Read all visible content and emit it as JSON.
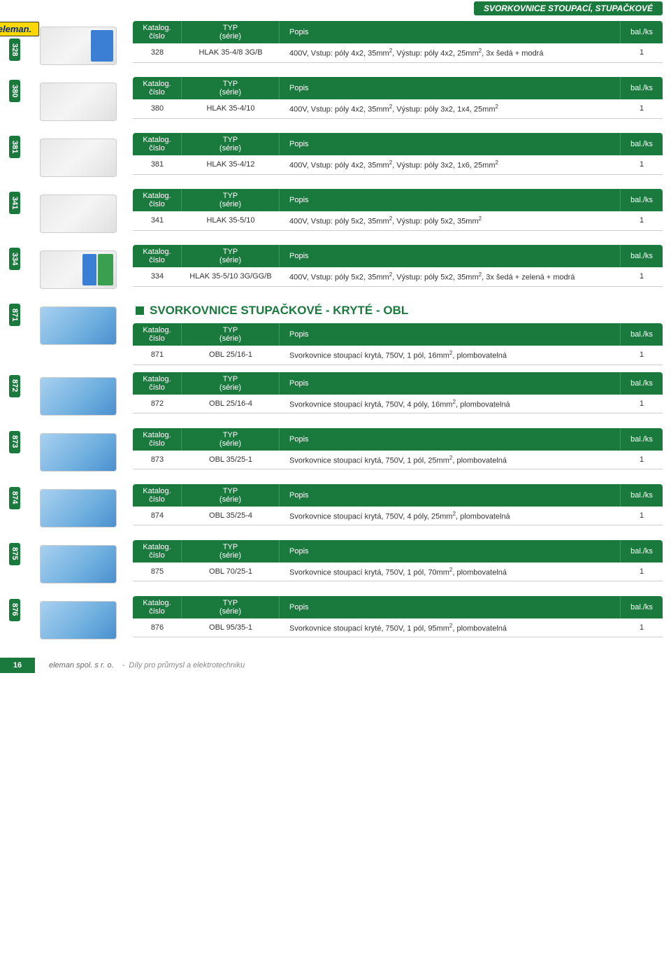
{
  "page_title": "SVORKOVNICE STOUPACÍ, STUPAČKOVÉ",
  "brand": "eleman.",
  "headers": {
    "kat": "Katalog.\nčíslo",
    "typ": "TYP\n(série)",
    "popis": "Popis",
    "bal": "bal./ks"
  },
  "section_title": "SVORKOVNICE STUPAČKOVÉ - KRYTÉ - OBL",
  "items": [
    {
      "tab": "328",
      "kat": "328",
      "typ": "HLAK 35-4/8 3G/B",
      "popis": "400V, Vstup: póly 4x2, 35mm², Výstup: póly 4x2, 25mm², 3x šedá + modrá",
      "bal": "1",
      "img": "blue-accent",
      "logo": true
    },
    {
      "tab": "380",
      "kat": "380",
      "typ": "HLAK 35-4/10",
      "popis": "400V, Vstup: póly 4x2, 35mm², Výstup: póly 3x2, 1x4, 25mm²",
      "bal": "1",
      "img": ""
    },
    {
      "tab": "381",
      "kat": "381",
      "typ": "HLAK 35-4/12",
      "popis": "400V, Vstup: póly 4x2, 35mm², Výstup: póly 3x2, 1x6, 25mm²",
      "bal": "1",
      "img": ""
    },
    {
      "tab": "341",
      "kat": "341",
      "typ": "HLAK 35-5/10",
      "popis": "400V, Vstup: póly 5x2, 35mm², Výstup: póly 5x2, 35mm²",
      "bal": "1",
      "img": ""
    },
    {
      "tab": "334",
      "kat": "334",
      "typ": "HLAK 35-5/10 3G/GG/B",
      "popis": "400V, Vstup: póly 5x2, 35mm², Výstup: póly 5x2, 35mm², 3x šedá + zelená + modrá",
      "bal": "1",
      "img": "green-accent"
    },
    {
      "tab": "871",
      "kat": "871",
      "typ": "OBL 25/16-1",
      "popis": "Svorkovnice stoupací krytá, 750V, 1 pól, 16mm², plombovatelná",
      "bal": "1",
      "img": "blue-cover",
      "section_title": true
    },
    {
      "tab": "872",
      "kat": "872",
      "typ": "OBL 25/16-4",
      "popis": "Svorkovnice stoupací krytá, 750V, 4 póly, 16mm², plombovatelná",
      "bal": "1",
      "img": "blue-cover"
    },
    {
      "tab": "873",
      "kat": "873",
      "typ": "OBL 35/25-1",
      "popis": "Svorkovnice stoupací krytá, 750V, 1 pól, 25mm², plombovatelná",
      "bal": "1",
      "img": "blue-cover"
    },
    {
      "tab": "874",
      "kat": "874",
      "typ": "OBL 35/25-4",
      "popis": "Svorkovnice stoupací krytá, 750V, 4 póly, 25mm², plombovatelná",
      "bal": "1",
      "img": "blue-cover"
    },
    {
      "tab": "875",
      "kat": "875",
      "typ": "OBL 70/25-1",
      "popis": "Svorkovnice stoupací krytá, 750V, 1 pól, 70mm², plombovatelná",
      "bal": "1",
      "img": "blue-cover"
    },
    {
      "tab": "876",
      "kat": "876",
      "typ": "OBL 95/35-1",
      "popis": "Svorkovnice stoupací kryté, 750V, 1 pól, 95mm², plombovatelná",
      "bal": "1",
      "img": "blue-cover"
    }
  ],
  "footer": {
    "page": "16",
    "brand": "eleman spol. s r. o.",
    "dash": "-",
    "tagline": "Díly pro průmysl a elektrotechniku"
  },
  "colors": {
    "brand_green": "#1a7a3e",
    "row_bg": "#ffffff",
    "border": "#cccccc"
  }
}
